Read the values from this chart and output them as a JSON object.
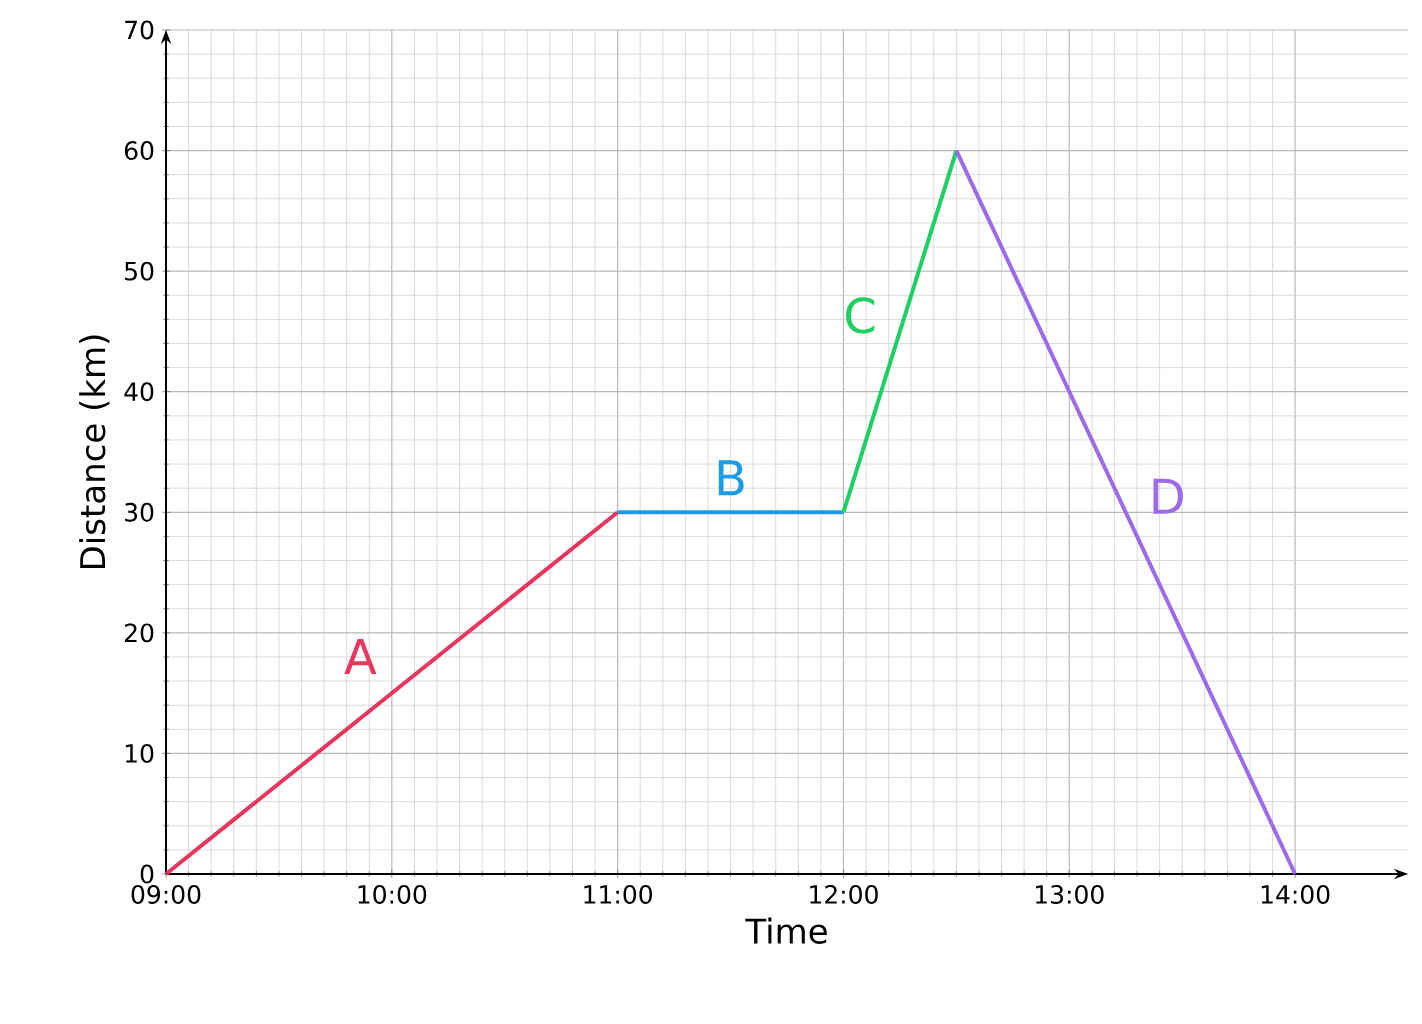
{
  "chart_data": {
    "type": "line",
    "xlabel": "Time",
    "ylabel": "Distance (km)",
    "series": [
      {
        "name": "A",
        "color": "#e8365d",
        "x": [
          9,
          11
        ],
        "values": [
          0,
          30
        ]
      },
      {
        "name": "B",
        "color": "#1e9be6",
        "x": [
          11,
          12
        ],
        "values": [
          30,
          30
        ]
      },
      {
        "name": "C",
        "color": "#1fcf63",
        "x": [
          12,
          12.5
        ],
        "values": [
          30,
          60
        ]
      },
      {
        "name": "D",
        "color": "#9b6be8",
        "x": [
          12.5,
          14
        ],
        "values": [
          60,
          0
        ]
      }
    ],
    "xlim": [
      9,
      14.5
    ],
    "ylim": [
      0,
      70
    ],
    "xticks": [
      {
        "value": 9,
        "label": "09:00"
      },
      {
        "value": 10,
        "label": "10:00"
      },
      {
        "value": 11,
        "label": "11:00"
      },
      {
        "value": 12,
        "label": "12:00"
      },
      {
        "value": 13,
        "label": "13:00"
      },
      {
        "value": 14,
        "label": "14:00"
      }
    ],
    "yticks": [
      0,
      10,
      20,
      30,
      40,
      50,
      60,
      70
    ],
    "grid": true,
    "marker": "none",
    "line_style": "solid"
  }
}
